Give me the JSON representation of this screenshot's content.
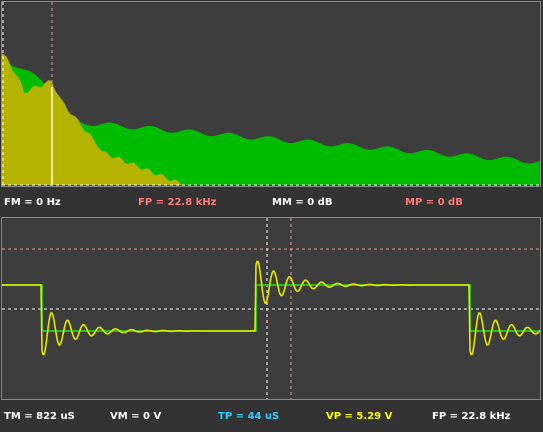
{
  "spectrum": {
    "readouts": {
      "fm": "FM = 0 Hz",
      "fp": "FP = 22.8 kHz",
      "mm": "MM = 0 dB",
      "mp": "MP = 0 dB"
    },
    "colors": {
      "trace_green": "#00bb00",
      "trace_olive": "#b3b300",
      "marker_white": "#ffffcc",
      "cursor_pink": "#e79a9a"
    }
  },
  "scope": {
    "readouts": {
      "tm": "TM = 822 uS",
      "vm": "VM = 0 V",
      "tp": "TP = 44 uS",
      "vp": "VP = 5.29 V",
      "fp": "FP = 22.8 kHz"
    },
    "colors": {
      "trace_green": "#22bb22",
      "trace_yellow": "#e6e600",
      "cursor_white": "#ffffff",
      "cursor_pink": "#e79a9a",
      "tp_text": "#33ccff",
      "vp_text": "#ffff00"
    }
  }
}
